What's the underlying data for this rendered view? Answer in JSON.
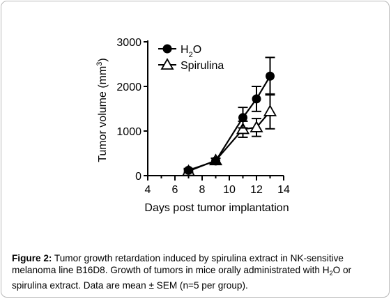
{
  "chart_data": {
    "type": "line",
    "xlabel": "Days post tumor implantation",
    "ylabel_text": "Tumor volume (mm",
    "ylabel_sup": "3",
    "ylabel_close": ")",
    "xlim": [
      4,
      14
    ],
    "ylim": [
      0,
      3000
    ],
    "xticks": [
      "4",
      "6",
      "8",
      "10",
      "12",
      "14"
    ],
    "yticks": [
      "0",
      "1000",
      "2000",
      "3000"
    ],
    "legend_position": "top-left",
    "series": [
      {
        "name_main": "H",
        "name_sub": "2",
        "name_end": "O",
        "marker": "filled-circle",
        "color": "#000000",
        "x": [
          7,
          9,
          11,
          12,
          13
        ],
        "y": [
          120,
          330,
          1300,
          1720,
          2230
        ],
        "err": [
          40,
          60,
          230,
          280,
          420
        ]
      },
      {
        "name": "Spirulina",
        "marker": "open-triangle",
        "color": "#000000",
        "x": [
          7,
          9,
          11,
          12,
          13
        ],
        "y": [
          100,
          340,
          1040,
          1080,
          1440
        ],
        "err": [
          30,
          50,
          180,
          200,
          390
        ]
      }
    ]
  },
  "caption": {
    "label": "Figure 2:",
    "text_1": " Tumor growth retardation induced by spirulina extract in NK-sensitive melanoma line B16D8. Growth of tumors in mice orally administrated with H",
    "sub": "2",
    "text_2": "O or spirulina extract. Data are mean ± SEM (n=5 per group)."
  }
}
